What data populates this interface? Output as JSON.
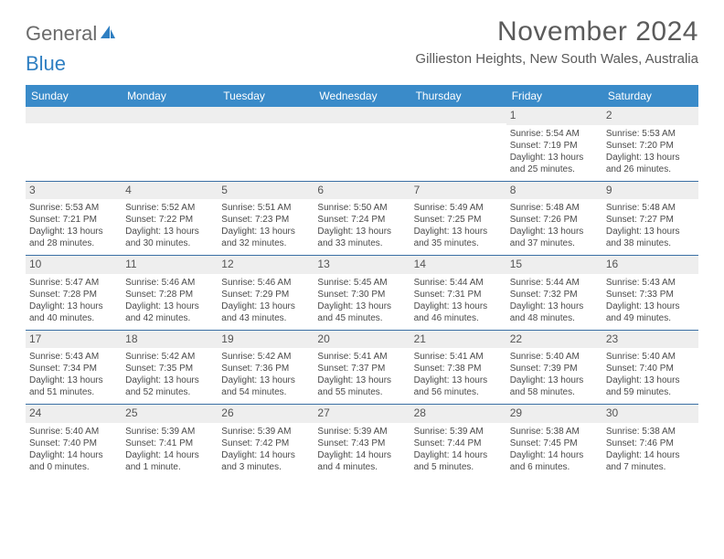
{
  "logo": {
    "text1": "General",
    "text2": "Blue"
  },
  "title": "November 2024",
  "location": "Gillieston Heights, New South Wales, Australia",
  "header_bg": "#3a8bc9",
  "divider_color": "#3a6fa5",
  "daynum_bg": "#eeeeee",
  "text_color": "#4a4a4a",
  "dayheads": [
    "Sunday",
    "Monday",
    "Tuesday",
    "Wednesday",
    "Thursday",
    "Friday",
    "Saturday"
  ],
  "weeks": [
    [
      {
        "n": "",
        "sr": "",
        "ss": "",
        "dl": ""
      },
      {
        "n": "",
        "sr": "",
        "ss": "",
        "dl": ""
      },
      {
        "n": "",
        "sr": "",
        "ss": "",
        "dl": ""
      },
      {
        "n": "",
        "sr": "",
        "ss": "",
        "dl": ""
      },
      {
        "n": "",
        "sr": "",
        "ss": "",
        "dl": ""
      },
      {
        "n": "1",
        "sr": "Sunrise: 5:54 AM",
        "ss": "Sunset: 7:19 PM",
        "dl": "Daylight: 13 hours and 25 minutes."
      },
      {
        "n": "2",
        "sr": "Sunrise: 5:53 AM",
        "ss": "Sunset: 7:20 PM",
        "dl": "Daylight: 13 hours and 26 minutes."
      }
    ],
    [
      {
        "n": "3",
        "sr": "Sunrise: 5:53 AM",
        "ss": "Sunset: 7:21 PM",
        "dl": "Daylight: 13 hours and 28 minutes."
      },
      {
        "n": "4",
        "sr": "Sunrise: 5:52 AM",
        "ss": "Sunset: 7:22 PM",
        "dl": "Daylight: 13 hours and 30 minutes."
      },
      {
        "n": "5",
        "sr": "Sunrise: 5:51 AM",
        "ss": "Sunset: 7:23 PM",
        "dl": "Daylight: 13 hours and 32 minutes."
      },
      {
        "n": "6",
        "sr": "Sunrise: 5:50 AM",
        "ss": "Sunset: 7:24 PM",
        "dl": "Daylight: 13 hours and 33 minutes."
      },
      {
        "n": "7",
        "sr": "Sunrise: 5:49 AM",
        "ss": "Sunset: 7:25 PM",
        "dl": "Daylight: 13 hours and 35 minutes."
      },
      {
        "n": "8",
        "sr": "Sunrise: 5:48 AM",
        "ss": "Sunset: 7:26 PM",
        "dl": "Daylight: 13 hours and 37 minutes."
      },
      {
        "n": "9",
        "sr": "Sunrise: 5:48 AM",
        "ss": "Sunset: 7:27 PM",
        "dl": "Daylight: 13 hours and 38 minutes."
      }
    ],
    [
      {
        "n": "10",
        "sr": "Sunrise: 5:47 AM",
        "ss": "Sunset: 7:28 PM",
        "dl": "Daylight: 13 hours and 40 minutes."
      },
      {
        "n": "11",
        "sr": "Sunrise: 5:46 AM",
        "ss": "Sunset: 7:28 PM",
        "dl": "Daylight: 13 hours and 42 minutes."
      },
      {
        "n": "12",
        "sr": "Sunrise: 5:46 AM",
        "ss": "Sunset: 7:29 PM",
        "dl": "Daylight: 13 hours and 43 minutes."
      },
      {
        "n": "13",
        "sr": "Sunrise: 5:45 AM",
        "ss": "Sunset: 7:30 PM",
        "dl": "Daylight: 13 hours and 45 minutes."
      },
      {
        "n": "14",
        "sr": "Sunrise: 5:44 AM",
        "ss": "Sunset: 7:31 PM",
        "dl": "Daylight: 13 hours and 46 minutes."
      },
      {
        "n": "15",
        "sr": "Sunrise: 5:44 AM",
        "ss": "Sunset: 7:32 PM",
        "dl": "Daylight: 13 hours and 48 minutes."
      },
      {
        "n": "16",
        "sr": "Sunrise: 5:43 AM",
        "ss": "Sunset: 7:33 PM",
        "dl": "Daylight: 13 hours and 49 minutes."
      }
    ],
    [
      {
        "n": "17",
        "sr": "Sunrise: 5:43 AM",
        "ss": "Sunset: 7:34 PM",
        "dl": "Daylight: 13 hours and 51 minutes."
      },
      {
        "n": "18",
        "sr": "Sunrise: 5:42 AM",
        "ss": "Sunset: 7:35 PM",
        "dl": "Daylight: 13 hours and 52 minutes."
      },
      {
        "n": "19",
        "sr": "Sunrise: 5:42 AM",
        "ss": "Sunset: 7:36 PM",
        "dl": "Daylight: 13 hours and 54 minutes."
      },
      {
        "n": "20",
        "sr": "Sunrise: 5:41 AM",
        "ss": "Sunset: 7:37 PM",
        "dl": "Daylight: 13 hours and 55 minutes."
      },
      {
        "n": "21",
        "sr": "Sunrise: 5:41 AM",
        "ss": "Sunset: 7:38 PM",
        "dl": "Daylight: 13 hours and 56 minutes."
      },
      {
        "n": "22",
        "sr": "Sunrise: 5:40 AM",
        "ss": "Sunset: 7:39 PM",
        "dl": "Daylight: 13 hours and 58 minutes."
      },
      {
        "n": "23",
        "sr": "Sunrise: 5:40 AM",
        "ss": "Sunset: 7:40 PM",
        "dl": "Daylight: 13 hours and 59 minutes."
      }
    ],
    [
      {
        "n": "24",
        "sr": "Sunrise: 5:40 AM",
        "ss": "Sunset: 7:40 PM",
        "dl": "Daylight: 14 hours and 0 minutes."
      },
      {
        "n": "25",
        "sr": "Sunrise: 5:39 AM",
        "ss": "Sunset: 7:41 PM",
        "dl": "Daylight: 14 hours and 1 minute."
      },
      {
        "n": "26",
        "sr": "Sunrise: 5:39 AM",
        "ss": "Sunset: 7:42 PM",
        "dl": "Daylight: 14 hours and 3 minutes."
      },
      {
        "n": "27",
        "sr": "Sunrise: 5:39 AM",
        "ss": "Sunset: 7:43 PM",
        "dl": "Daylight: 14 hours and 4 minutes."
      },
      {
        "n": "28",
        "sr": "Sunrise: 5:39 AM",
        "ss": "Sunset: 7:44 PM",
        "dl": "Daylight: 14 hours and 5 minutes."
      },
      {
        "n": "29",
        "sr": "Sunrise: 5:38 AM",
        "ss": "Sunset: 7:45 PM",
        "dl": "Daylight: 14 hours and 6 minutes."
      },
      {
        "n": "30",
        "sr": "Sunrise: 5:38 AM",
        "ss": "Sunset: 7:46 PM",
        "dl": "Daylight: 14 hours and 7 minutes."
      }
    ]
  ]
}
